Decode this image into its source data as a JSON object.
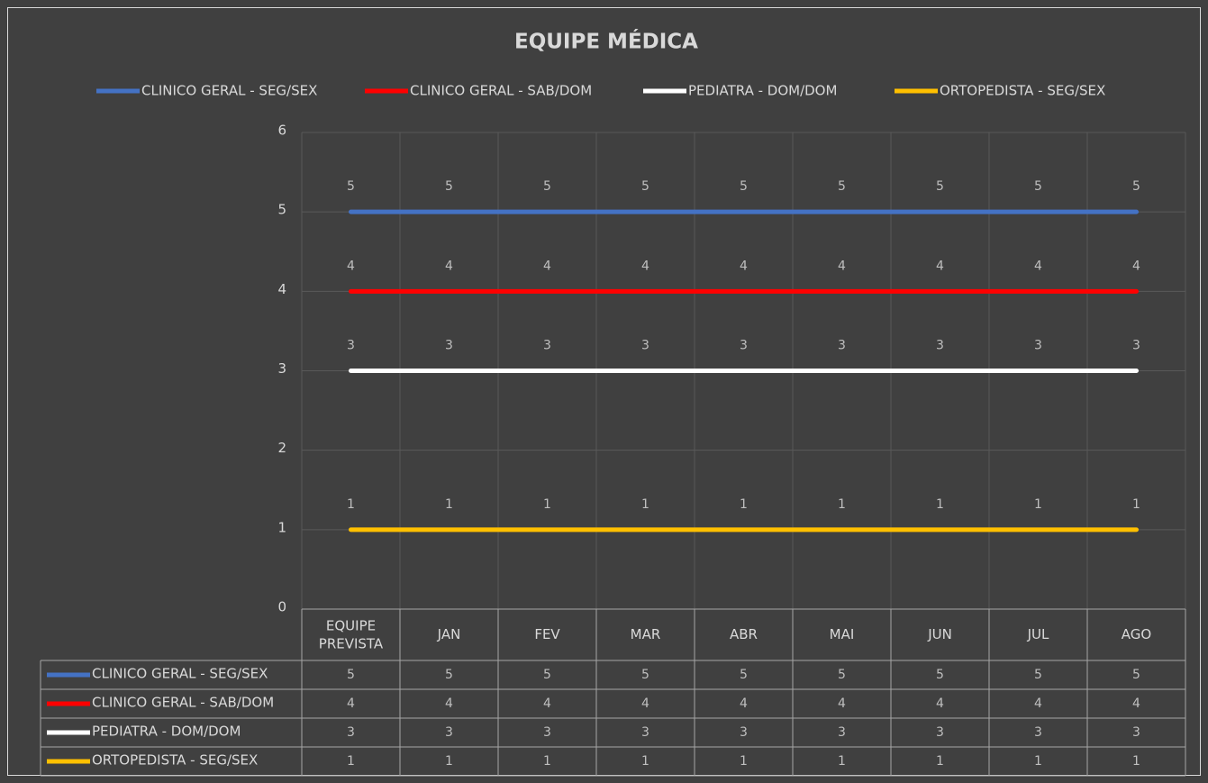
{
  "chart_data": {
    "type": "line",
    "title": "EQUIPE MÉDICA",
    "categories": [
      "EQUIPE PREVISTA",
      "JAN",
      "FEV",
      "MAR",
      "ABR",
      "MAI",
      "JUN",
      "JUL",
      "AGO"
    ],
    "series": [
      {
        "name": "CLINICO GERAL - SEG/SEX",
        "color": "#4472c4",
        "values": [
          5,
          5,
          5,
          5,
          5,
          5,
          5,
          5,
          5
        ]
      },
      {
        "name": "CLINICO GERAL - SAB/DOM",
        "color": "#ff0000",
        "values": [
          4,
          4,
          4,
          4,
          4,
          4,
          4,
          4,
          4
        ]
      },
      {
        "name": "PEDIATRA - DOM/DOM",
        "color": "#ffffff",
        "values": [
          3,
          3,
          3,
          3,
          3,
          3,
          3,
          3,
          3
        ]
      },
      {
        "name": "ORTOPEDISTA - SEG/SEX",
        "color": "#ffc000",
        "values": [
          1,
          1,
          1,
          1,
          1,
          1,
          1,
          1,
          1
        ]
      }
    ],
    "ylim": [
      0,
      6
    ],
    "yticks": [
      0,
      1,
      2,
      3,
      4,
      5,
      6
    ],
    "grid": true,
    "legend": "top",
    "data_table": true
  }
}
